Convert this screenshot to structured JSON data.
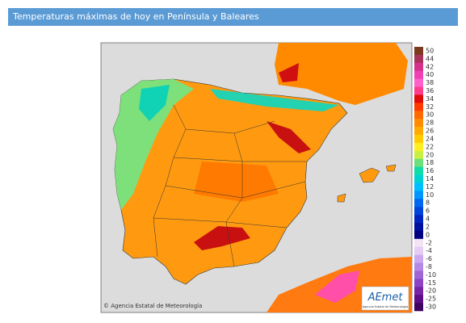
{
  "header": {
    "title": "Temperaturas máximas de hoy en Península y Baleares"
  },
  "map": {
    "credit": "© Agencia Estatal de Meteorología",
    "logo": {
      "name": "AEmet",
      "subtitle": "Agencia Estatal de Meteorología"
    }
  },
  "legend": {
    "items": [
      {
        "value": 50,
        "color": "#7b3a1e"
      },
      {
        "value": 44,
        "color": "#a8325a"
      },
      {
        "value": 42,
        "color": "#d4308c"
      },
      {
        "value": 40,
        "color": "#f040b4"
      },
      {
        "value": 38,
        "color": "#ff60cc"
      },
      {
        "value": 36,
        "color": "#ff3c8c"
      },
      {
        "value": 34,
        "color": "#e00a0a"
      },
      {
        "value": 32,
        "color": "#ff3a00"
      },
      {
        "value": 30,
        "color": "#ff6a00"
      },
      {
        "value": 28,
        "color": "#ff8c00"
      },
      {
        "value": 26,
        "color": "#ffaa00"
      },
      {
        "value": 24,
        "color": "#ffcc00"
      },
      {
        "value": 22,
        "color": "#ffee22"
      },
      {
        "value": 20,
        "color": "#c8f040"
      },
      {
        "value": 18,
        "color": "#6ce07a"
      },
      {
        "value": 16,
        "color": "#10dca8"
      },
      {
        "value": 14,
        "color": "#00d2d2"
      },
      {
        "value": 12,
        "color": "#00beff"
      },
      {
        "value": 10,
        "color": "#0096ff"
      },
      {
        "value": 8,
        "color": "#0068f0"
      },
      {
        "value": 6,
        "color": "#0044dc"
      },
      {
        "value": 4,
        "color": "#0024c0"
      },
      {
        "value": 2,
        "color": "#0010a0"
      },
      {
        "value": 0,
        "color": "#000080"
      },
      {
        "value": -2,
        "color": "#f2e4f4"
      },
      {
        "value": -4,
        "color": "#e4ccf4"
      },
      {
        "value": -6,
        "color": "#cca8f0"
      },
      {
        "value": -8,
        "color": "#b488e4"
      },
      {
        "value": -10,
        "color": "#a064d4"
      },
      {
        "value": -15,
        "color": "#8c44c4"
      },
      {
        "value": -20,
        "color": "#7824a8"
      },
      {
        "value": -25,
        "color": "#5c0c88"
      },
      {
        "value": -30,
        "color": "#400060"
      }
    ]
  }
}
